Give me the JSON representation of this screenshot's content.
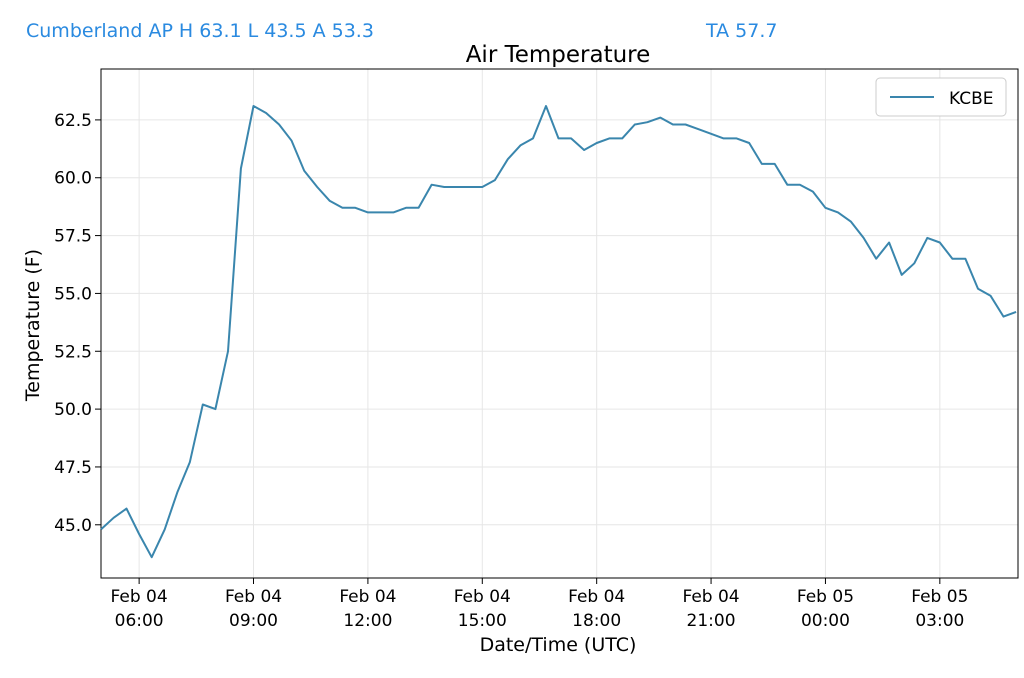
{
  "header": {
    "station_summary": "Cumberland AP H 63.1 L 43.5 A 53.3",
    "ta": "TA 57.7"
  },
  "colors": {
    "line": "#3a86ad",
    "header_text": "#2a8ae0",
    "grid": "#e6e6e6"
  },
  "chart_data": {
    "type": "line",
    "title": "Air Temperature",
    "xlabel": "Date/Time (UTC)",
    "ylabel": "Temperature (F)",
    "legend_position": "top-right",
    "grid": true,
    "x_unit": "hours since Feb 04 00:00 UTC",
    "xlim": [
      5.0,
      29.05
    ],
    "ylim": [
      42.7,
      64.7
    ],
    "x_ticks": [
      {
        "value": 6,
        "label": [
          "Feb 04",
          "06:00"
        ]
      },
      {
        "value": 9,
        "label": [
          "Feb 04",
          "09:00"
        ]
      },
      {
        "value": 12,
        "label": [
          "Feb 04",
          "12:00"
        ]
      },
      {
        "value": 15,
        "label": [
          "Feb 04",
          "15:00"
        ]
      },
      {
        "value": 18,
        "label": [
          "Feb 04",
          "18:00"
        ]
      },
      {
        "value": 21,
        "label": [
          "Feb 04",
          "21:00"
        ]
      },
      {
        "value": 24,
        "label": [
          "Feb 05",
          "00:00"
        ]
      },
      {
        "value": 27,
        "label": [
          "Feb 05",
          "03:00"
        ]
      }
    ],
    "y_ticks": [
      45.0,
      47.5,
      50.0,
      52.5,
      55.0,
      57.5,
      60.0,
      62.5
    ],
    "series": [
      {
        "name": "KCBE",
        "x": [
          5.0,
          5.33,
          5.67,
          6.0,
          6.33,
          6.67,
          7.0,
          7.33,
          7.67,
          8.0,
          8.33,
          8.67,
          9.0,
          9.33,
          9.67,
          10.0,
          10.33,
          10.67,
          11.0,
          11.33,
          11.67,
          12.0,
          12.33,
          12.67,
          13.0,
          13.33,
          13.67,
          14.0,
          14.33,
          14.67,
          15.0,
          15.33,
          15.67,
          16.0,
          16.33,
          16.67,
          17.0,
          17.33,
          17.67,
          18.0,
          18.33,
          18.67,
          19.0,
          19.33,
          19.67,
          20.0,
          20.33,
          20.67,
          21.0,
          21.33,
          21.67,
          22.0,
          22.33,
          22.67,
          23.0,
          23.33,
          23.67,
          24.0,
          24.33,
          24.67,
          25.0,
          25.33,
          25.67,
          26.0,
          26.33,
          26.67,
          27.0,
          27.33,
          27.67,
          28.0,
          28.33,
          28.67,
          29.0
        ],
        "y": [
          44.8,
          45.3,
          45.7,
          44.6,
          43.6,
          44.8,
          46.4,
          47.7,
          50.2,
          50.0,
          52.5,
          60.4,
          63.1,
          62.8,
          62.3,
          61.6,
          60.3,
          59.6,
          59.0,
          58.7,
          58.7,
          58.5,
          58.5,
          58.5,
          58.7,
          58.7,
          59.7,
          59.6,
          59.6,
          59.6,
          59.6,
          59.9,
          60.8,
          61.4,
          61.7,
          63.1,
          61.7,
          61.7,
          61.2,
          61.5,
          61.7,
          61.7,
          62.3,
          62.4,
          62.6,
          62.3,
          62.3,
          62.1,
          61.9,
          61.7,
          61.7,
          61.5,
          60.6,
          60.6,
          59.7,
          59.7,
          59.4,
          58.7,
          58.5,
          58.1,
          57.4,
          56.5,
          57.2,
          55.8,
          56.3,
          57.4,
          57.2,
          56.5,
          56.5,
          55.2,
          54.9,
          54.0,
          54.2
        ]
      }
    ]
  }
}
